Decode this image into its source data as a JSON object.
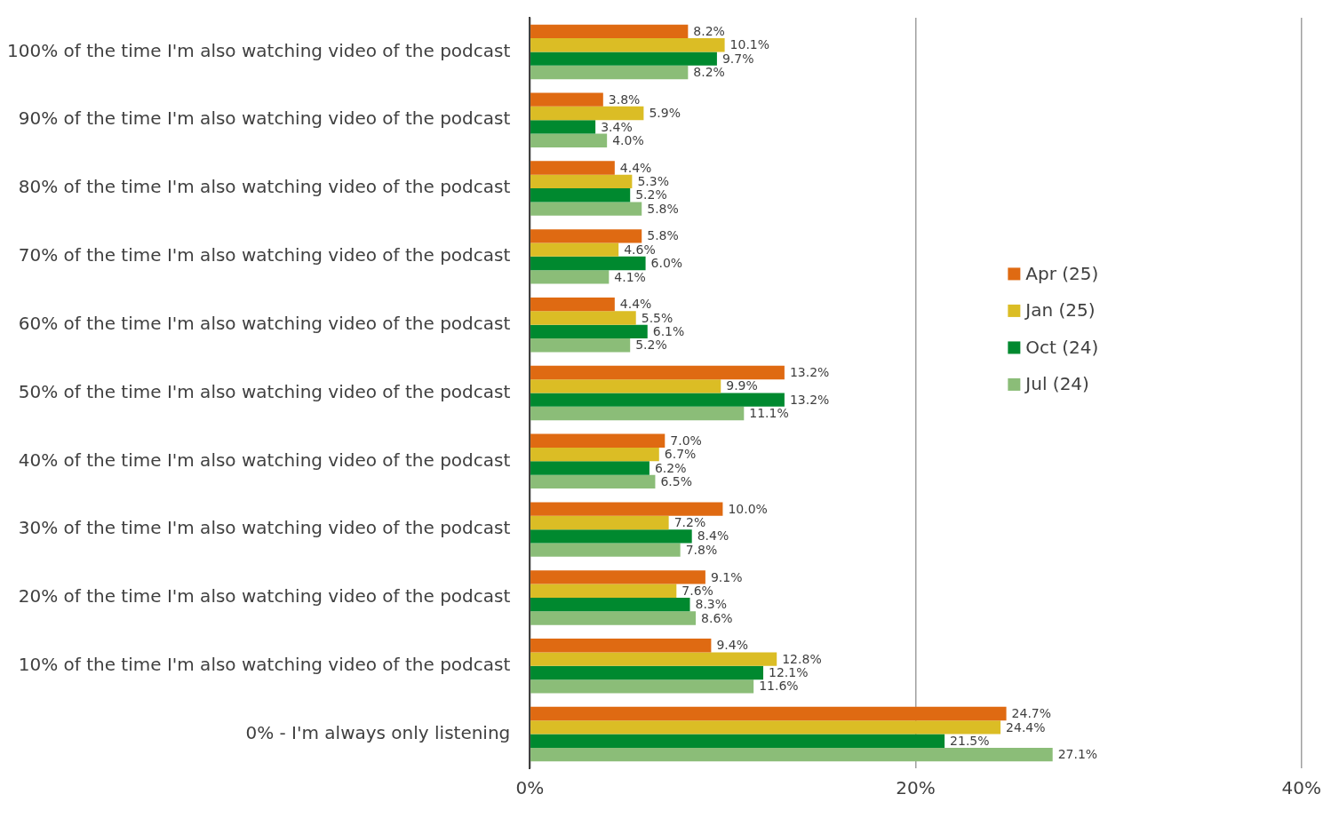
{
  "chart_data": {
    "type": "bar",
    "orientation": "horizontal",
    "categories": [
      "100% of the time I'm also watching video of the podcast",
      "90% of the time I'm also watching video of the podcast",
      "80% of the time I'm also watching video of the podcast",
      "70% of the time I'm also watching video of the podcast",
      "60% of the time I'm also watching video of the podcast",
      "50% of the time I'm also watching video of the podcast",
      "40% of the time I'm also watching video of the podcast",
      "30% of the time I'm also watching video of the podcast",
      "20% of the time I'm also watching video of the podcast",
      "10% of the time I'm also watching video of the podcast",
      "0% - I'm always only listening"
    ],
    "series": [
      {
        "name": "Apr (25)",
        "color": "#df6a12",
        "values": [
          8.2,
          3.8,
          4.4,
          5.8,
          4.4,
          13.2,
          7.0,
          10.0,
          9.1,
          9.4,
          24.7
        ],
        "value_labels": [
          "8.2%",
          "3.8%",
          "4.4%",
          "5.8%",
          "4.4%",
          "13.2%",
          "7.0%",
          "10.0%",
          "9.1%",
          "9.4%",
          "24.7%"
        ]
      },
      {
        "name": "Jan (25)",
        "color": "#dbbd25",
        "values": [
          10.1,
          5.9,
          5.3,
          4.6,
          5.5,
          9.9,
          6.7,
          7.2,
          7.6,
          12.8,
          24.4
        ],
        "value_labels": [
          "10.1%",
          "5.9%",
          "5.3%",
          "4.6%",
          "5.5%",
          "9.9%",
          "6.7%",
          "7.2%",
          "7.6%",
          "12.8%",
          "24.4%"
        ]
      },
      {
        "name": "Oct (24)",
        "color": "#00892f",
        "values": [
          9.7,
          3.4,
          5.2,
          6.0,
          6.1,
          13.2,
          6.2,
          8.4,
          8.3,
          12.1,
          21.5
        ],
        "value_labels": [
          "9.7%",
          "3.4%",
          "5.2%",
          "6.0%",
          "6.1%",
          "13.2%",
          "6.2%",
          "8.4%",
          "8.3%",
          "12.1%",
          "21.5%"
        ]
      },
      {
        "name": "Jul (24)",
        "color": "#8bbd78",
        "values": [
          8.2,
          4.0,
          5.8,
          4.1,
          5.2,
          11.1,
          6.5,
          7.8,
          8.6,
          11.6,
          27.1
        ],
        "value_labels": [
          "8.2%",
          "4.0%",
          "5.8%",
          "4.1%",
          "5.2%",
          "11.1%",
          "6.5%",
          "7.8%",
          "8.6%",
          "11.6%",
          "27.1%"
        ]
      }
    ],
    "xlim": [
      0,
      40
    ],
    "xticks": [
      {
        "value": 0,
        "label": "0%"
      },
      {
        "value": 20,
        "label": "20%"
      },
      {
        "value": 40,
        "label": "40%"
      }
    ],
    "grid": "x",
    "legend": "right"
  }
}
